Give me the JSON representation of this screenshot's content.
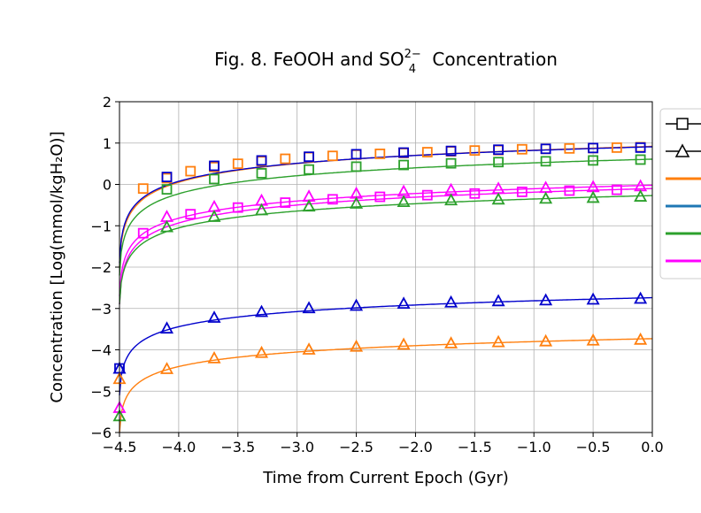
{
  "chart_data": {
    "type": "line",
    "title_main": "Fig. 8. FeOOH and SO",
    "title_sub": "4",
    "title_sup": "2−",
    "title_tail": " Concentration",
    "xlabel": "Time from Current Epoch (Gyr)",
    "ylabel": "Concentration [Log(mmol/kgH₂O)]",
    "xlim": [
      -4.5,
      0.0
    ],
    "ylim": [
      -6,
      2
    ],
    "xticks": [
      -4.5,
      -4.0,
      -3.5,
      -3.0,
      -2.5,
      -2.0,
      -1.5,
      -1.0,
      -0.5,
      0.0
    ],
    "xtick_labels": [
      "−4.5",
      "−4.0",
      "−3.5",
      "−3.0",
      "−2.5",
      "−2.0",
      "−1.5",
      "−1.0",
      "−0.5",
      "0.0"
    ],
    "yticks": [
      -6,
      -5,
      -4,
      -3,
      -2,
      -1,
      0,
      1,
      2
    ],
    "ytick_labels": [
      "−6",
      "−5",
      "−4",
      "−3",
      "−2",
      "−1",
      "0",
      "1",
      "2"
    ],
    "grid": true,
    "legend": {
      "placement": "right (clipped)",
      "entries": [
        {
          "marker": "square",
          "color": "#000000"
        },
        {
          "marker": "triangle",
          "color": "#000000"
        },
        {
          "line": true,
          "color": "#ff7f0e"
        },
        {
          "line": true,
          "color": "#1f77b4"
        },
        {
          "line": true,
          "color": "#2ca02c"
        },
        {
          "line": true,
          "color": "#ff00ff"
        }
      ]
    },
    "series": [
      {
        "color": "#ff7f0e",
        "marker": "square",
        "x": [
          -4.3,
          -4.1,
          -3.9,
          -3.7,
          -3.5,
          -3.3,
          -3.1,
          -2.9,
          -2.7,
          -2.5,
          -2.3,
          -2.1,
          -1.9,
          -1.7,
          -1.5,
          -1.3,
          -1.1,
          -0.9,
          -0.7,
          -0.5,
          -0.3,
          -0.1
        ],
        "y": [
          -0.1,
          0.15,
          0.32,
          0.42,
          0.5,
          0.56,
          0.62,
          0.66,
          0.69,
          0.72,
          0.74,
          0.76,
          0.78,
          0.8,
          0.82,
          0.83,
          0.85,
          0.86,
          0.87,
          0.88,
          0.89,
          0.9
        ],
        "curve": {
          "y_start": -2.0,
          "y_end": 0.92
        }
      },
      {
        "color": "#0000cc",
        "marker": "square",
        "x": [
          -4.5,
          -4.1,
          -3.7,
          -3.3,
          -2.9,
          -2.5,
          -2.1,
          -1.7,
          -1.3,
          -0.9,
          -0.5,
          -0.1
        ],
        "y": [
          -4.45,
          0.18,
          0.45,
          0.58,
          0.67,
          0.73,
          0.77,
          0.81,
          0.84,
          0.86,
          0.88,
          0.89
        ],
        "curve": {
          "y_start": -1.9,
          "y_end": 0.91
        }
      },
      {
        "color": "#2ca02c",
        "marker": "square",
        "x": [
          -4.1,
          -3.7,
          -3.3,
          -2.9,
          -2.5,
          -2.1,
          -1.7,
          -1.3,
          -0.9,
          -0.5,
          -0.1
        ],
        "y": [
          -0.12,
          0.13,
          0.27,
          0.36,
          0.43,
          0.47,
          0.51,
          0.54,
          0.56,
          0.58,
          0.6
        ],
        "curve": {
          "y_start": -2.2,
          "y_end": 0.61
        }
      },
      {
        "color": "#ff00ff",
        "marker": "square",
        "x": [
          -4.3,
          -3.9,
          -3.5,
          -3.1,
          -2.7,
          -2.3,
          -1.9,
          -1.5,
          -1.1,
          -0.7,
          -0.3
        ],
        "y": [
          -1.18,
          -0.72,
          -0.56,
          -0.44,
          -0.36,
          -0.3,
          -0.26,
          -0.22,
          -0.18,
          -0.15,
          -0.13
        ],
        "curve": {
          "y_start": -2.9,
          "y_end": -0.1
        }
      },
      {
        "color": "#ff00ff",
        "marker": "triangle",
        "x": [
          -4.5,
          -4.1,
          -3.7,
          -3.3,
          -2.9,
          -2.5,
          -2.1,
          -1.7,
          -1.3,
          -0.9,
          -0.5,
          -0.1
        ],
        "y": [
          -5.4,
          -0.78,
          -0.54,
          -0.39,
          -0.29,
          -0.22,
          -0.17,
          -0.13,
          -0.1,
          -0.08,
          -0.06,
          -0.04
        ],
        "curve": {
          "y_start": -2.7,
          "y_end": -0.02
        }
      },
      {
        "color": "#2ca02c",
        "marker": "triangle",
        "x": [
          -4.5,
          -4.1,
          -3.7,
          -3.3,
          -2.9,
          -2.5,
          -2.1,
          -1.7,
          -1.3,
          -0.9,
          -0.5,
          -0.1
        ],
        "y": [
          -5.6,
          -1.03,
          -0.78,
          -0.62,
          -0.53,
          -0.46,
          -0.42,
          -0.38,
          -0.36,
          -0.34,
          -0.32,
          -0.29
        ],
        "curve": {
          "y_start": -2.9,
          "y_end": -0.27
        }
      },
      {
        "color": "#0000cc",
        "marker": "triangle",
        "x": [
          -4.5,
          -4.1,
          -3.7,
          -3.3,
          -2.9,
          -2.5,
          -2.1,
          -1.7,
          -1.3,
          -0.9,
          -0.5,
          -0.1
        ],
        "y": [
          -4.45,
          -3.48,
          -3.22,
          -3.08,
          -2.99,
          -2.93,
          -2.88,
          -2.85,
          -2.82,
          -2.8,
          -2.78,
          -2.76
        ],
        "curve": {
          "y_start": -5.1,
          "y_end": -2.74
        }
      },
      {
        "color": "#ff7f0e",
        "marker": "triangle",
        "x": [
          -4.5,
          -4.1,
          -3.7,
          -3.3,
          -2.9,
          -2.5,
          -2.1,
          -1.7,
          -1.3,
          -0.9,
          -0.5,
          -0.1
        ],
        "y": [
          -4.7,
          -4.46,
          -4.2,
          -4.07,
          -3.99,
          -3.92,
          -3.87,
          -3.84,
          -3.81,
          -3.79,
          -3.77,
          -3.75
        ],
        "curve": {
          "y_start": -6.0,
          "y_end": -3.73
        }
      }
    ]
  }
}
